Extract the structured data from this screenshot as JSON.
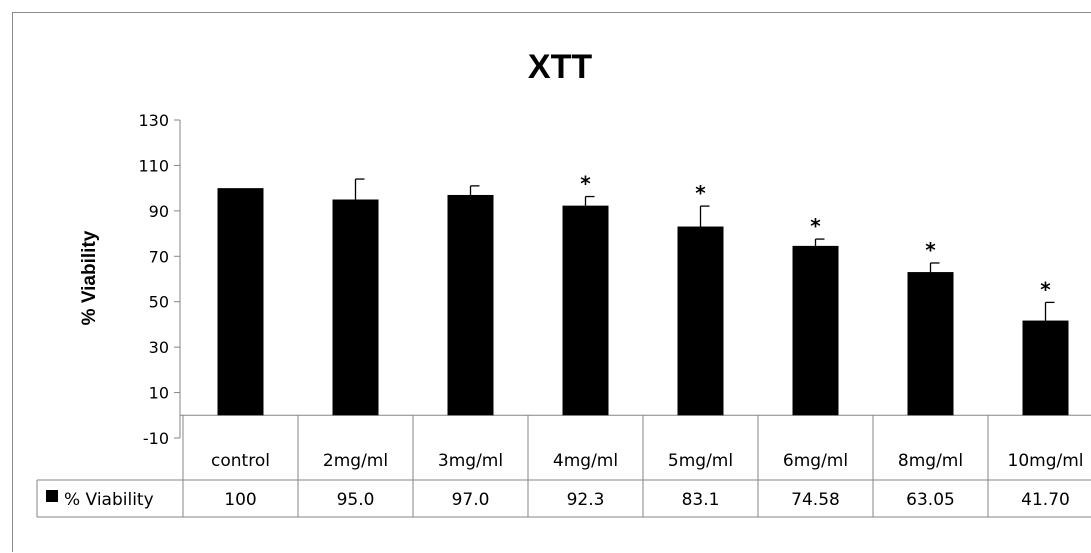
{
  "chart_data": {
    "type": "bar",
    "title": "XTT",
    "ylabel": "% Viability",
    "xlabel": "",
    "ylim": [
      -10,
      130
    ],
    "yticks": [
      130,
      110,
      90,
      70,
      50,
      30,
      10,
      -10
    ],
    "grid": false,
    "legend": "table-left",
    "categories": [
      "control",
      "2mg/ml",
      "3mg/ml",
      "4mg/ml",
      "5mg/ml",
      "6mg/ml",
      "8mg/ml",
      "10mg/ml"
    ],
    "series": [
      {
        "name": "% Viability",
        "color": "#000000",
        "values": [
          100,
          95.0,
          97.0,
          92.3,
          83.1,
          74.58,
          63.05,
          41.7
        ],
        "value_labels": [
          "100",
          "95.0",
          "97.0",
          "92.3",
          "83.1",
          "74.58",
          "63.05",
          "41.70"
        ],
        "error": [
          0,
          9,
          4,
          4,
          9,
          3,
          4,
          8
        ],
        "significance": [
          "",
          "",
          "",
          "*",
          "*",
          "*",
          "*",
          "*"
        ]
      }
    ]
  }
}
